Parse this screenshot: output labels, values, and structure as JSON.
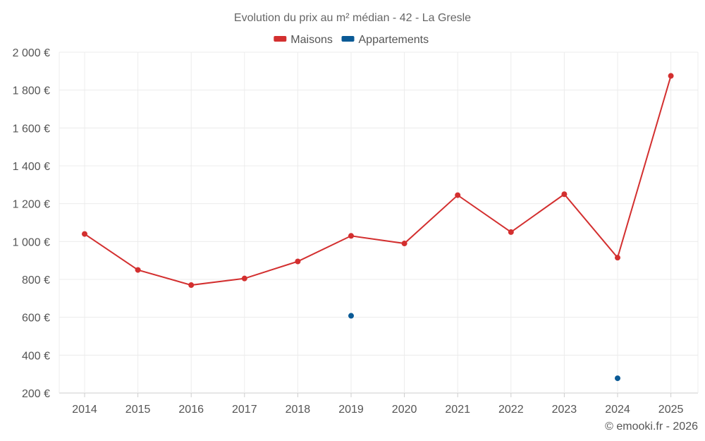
{
  "chart_data": {
    "type": "line",
    "title": "Evolution du prix au m² médian - 42 - La Gresle",
    "categories": [
      "2014",
      "2015",
      "2016",
      "2017",
      "2018",
      "2019",
      "2020",
      "2021",
      "2022",
      "2023",
      "2024",
      "2025"
    ],
    "ylim": [
      200,
      2000
    ],
    "yticks": [
      200,
      400,
      600,
      800,
      1000,
      1200,
      1400,
      1600,
      1800,
      2000
    ],
    "ytick_labels": [
      "200 €",
      "400 €",
      "600 €",
      "800 €",
      "1 000 €",
      "1 200 €",
      "1 400 €",
      "1 600 €",
      "1 800 €",
      "2 000 €"
    ],
    "grid": true,
    "legend_position": "top-center",
    "series": [
      {
        "name": "Maisons",
        "color": "#d32f2f",
        "values": [
          1040,
          850,
          770,
          805,
          895,
          1030,
          990,
          1245,
          1050,
          1250,
          915,
          1875
        ]
      },
      {
        "name": "Appartements",
        "color": "#0a5a96",
        "values": [
          null,
          null,
          null,
          null,
          null,
          608,
          null,
          null,
          null,
          null,
          278,
          null
        ]
      }
    ],
    "credit": "© emooki.fr - 2026"
  }
}
